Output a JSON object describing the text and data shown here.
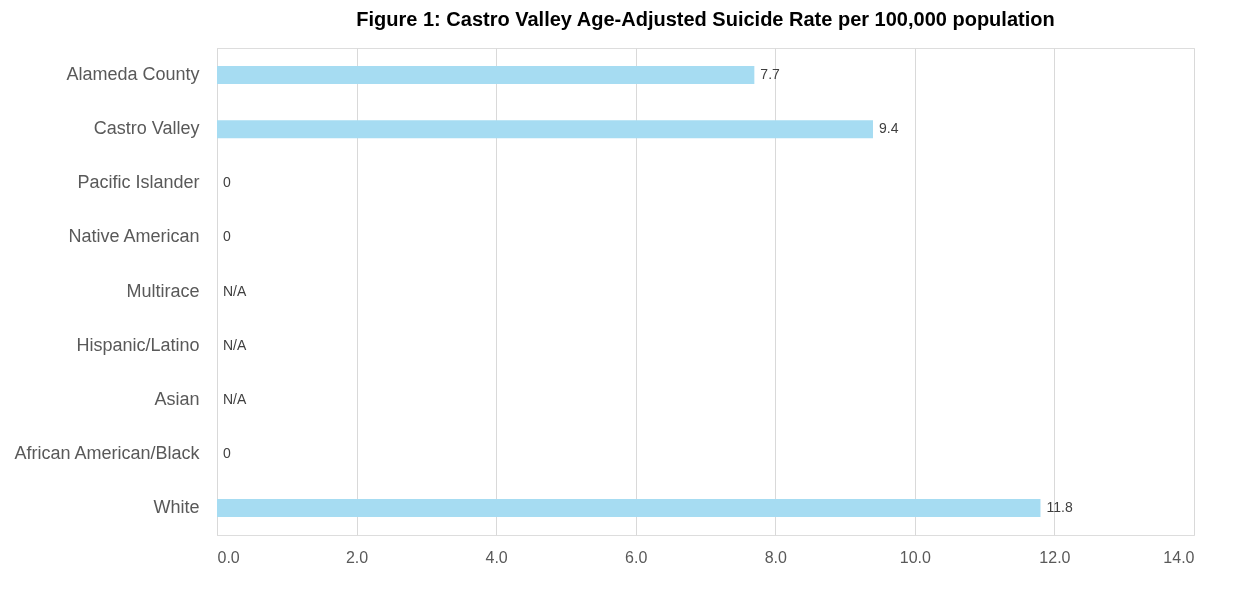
{
  "chart_data": {
    "type": "bar",
    "orientation": "horizontal",
    "title": "Figure 1: Castro Valley Age-Adjusted Suicide Rate per 100,000 population",
    "categories": [
      "Alameda County",
      "Castro Valley",
      "Pacific Islander",
      "Native American",
      "Multirace",
      "Hispanic/Latino",
      "Asian",
      "African American/Black",
      "White"
    ],
    "values": [
      7.7,
      9.4,
      0,
      0,
      null,
      null,
      null,
      0,
      11.8
    ],
    "value_labels": [
      "7.7",
      "9.4",
      "0",
      "0",
      "N/A",
      "N/A",
      "N/A",
      "0",
      "11.8"
    ],
    "color": "#a6dcf2",
    "xlim": [
      0,
      14
    ],
    "xticks": [
      {
        "value": 0,
        "label": "0.0"
      },
      {
        "value": 2,
        "label": "2.0"
      },
      {
        "value": 4,
        "label": "4.0"
      },
      {
        "value": 6,
        "label": "6.0"
      },
      {
        "value": 8,
        "label": "8.0"
      },
      {
        "value": 10,
        "label": "10.0"
      },
      {
        "value": 12,
        "label": "12.0"
      },
      {
        "value": 14,
        "label": "14.0"
      }
    ],
    "grid": "x"
  }
}
